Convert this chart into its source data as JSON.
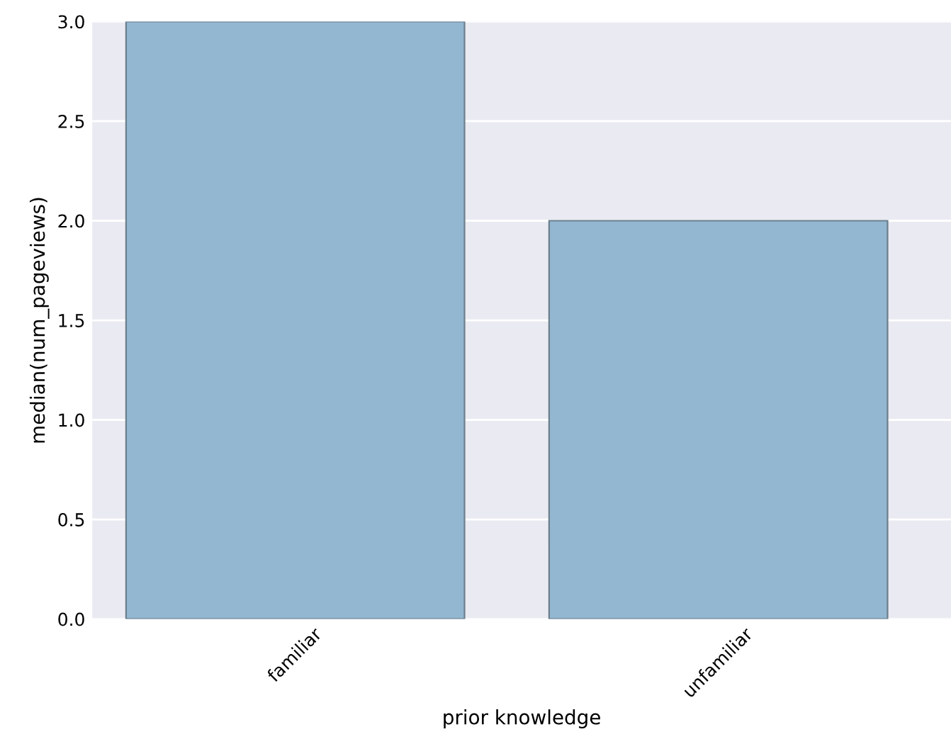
{
  "chart_data": {
    "type": "bar",
    "xlabel": "prior knowledge",
    "ylabel": "median(num_pageviews)",
    "categories": [
      "familiar",
      "unfamiliar"
    ],
    "values": [
      3.0,
      2.0
    ],
    "color": "#93b7d1",
    "ylim": [
      0,
      3.0
    ],
    "yticks": [
      {
        "value": 0,
        "label": "0.0"
      },
      {
        "value": 0.5,
        "label": "0.5"
      },
      {
        "value": 1.0,
        "label": "1.0"
      },
      {
        "value": 1.5,
        "label": "1.5"
      },
      {
        "value": 2.0,
        "label": "2.0"
      },
      {
        "value": 2.5,
        "label": "2.5"
      },
      {
        "value": 3.0,
        "label": "3.0"
      }
    ],
    "grid": "y"
  }
}
